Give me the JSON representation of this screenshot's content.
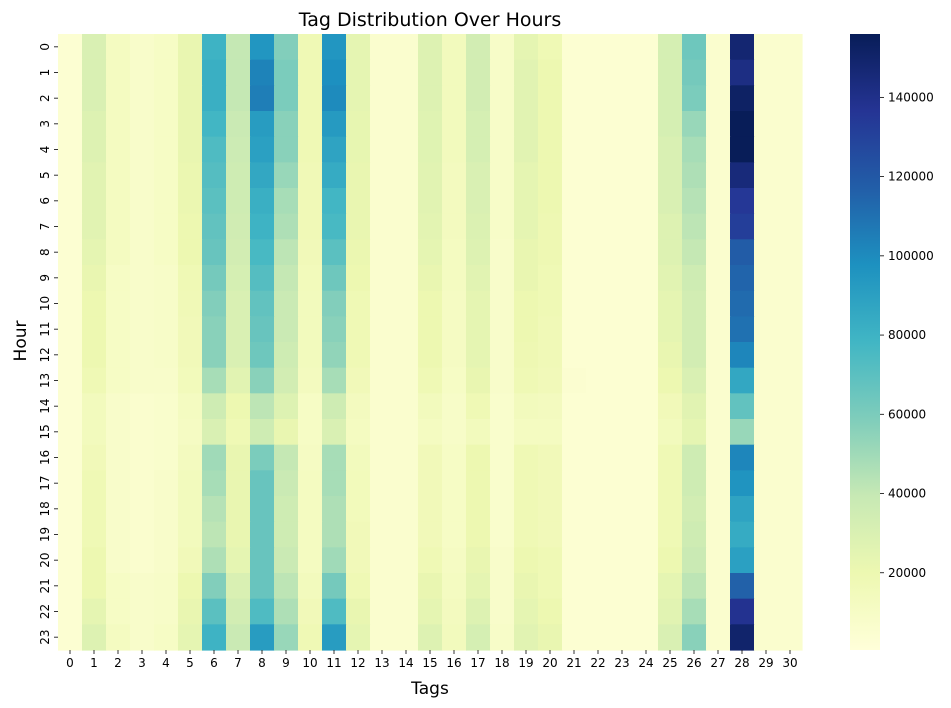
{
  "chart_data": {
    "type": "heatmap",
    "title": "Tag Distribution Over Hours",
    "xlabel": "Tags",
    "ylabel": "Hour",
    "x_categories": [
      "0",
      "1",
      "2",
      "3",
      "4",
      "5",
      "6",
      "7",
      "8",
      "9",
      "10",
      "11",
      "12",
      "13",
      "14",
      "15",
      "16",
      "17",
      "18",
      "19",
      "20",
      "21",
      "22",
      "23",
      "24",
      "25",
      "26",
      "27",
      "28",
      "29",
      "30"
    ],
    "y_categories": [
      "0",
      "1",
      "2",
      "3",
      "4",
      "5",
      "6",
      "7",
      "8",
      "9",
      "10",
      "11",
      "12",
      "13",
      "14",
      "15",
      "16",
      "17",
      "18",
      "19",
      "20",
      "21",
      "22",
      "23"
    ],
    "colormap": "YlGnBu",
    "color_stops": [
      "#ffffd9",
      "#edf8b1",
      "#c7e9b4",
      "#7fcdbb",
      "#41b6c4",
      "#1d91c0",
      "#225ea8",
      "#253494",
      "#081d58"
    ],
    "vmin": 500,
    "vmax": 156000,
    "colorbar_ticks": [
      20000,
      40000,
      60000,
      80000,
      100000,
      120000,
      140000
    ],
    "colorbar_tick_labels": [
      "20000",
      "40000",
      "60000",
      "80000",
      "100000",
      "120000",
      "140000"
    ],
    "grid": false,
    "values": [
      [
        4000,
        30000,
        12000,
        8000,
        10000,
        22000,
        80000,
        40000,
        95000,
        58000,
        18000,
        95000,
        24000,
        6000,
        6000,
        28000,
        14000,
        34000,
        9000,
        24000,
        18000,
        4000,
        4000,
        4000,
        4000,
        32000,
        64000,
        6000,
        148000,
        6000,
        6000
      ],
      [
        4000,
        30000,
        12000,
        8000,
        10000,
        22000,
        82000,
        40000,
        103000,
        60000,
        18000,
        98000,
        24000,
        6000,
        6000,
        28000,
        14000,
        34000,
        9000,
        26000,
        20000,
        4000,
        4000,
        4000,
        4000,
        32000,
        62000,
        6000,
        142000,
        6000,
        6000
      ],
      [
        4000,
        30000,
        12000,
        8000,
        10000,
        22000,
        82000,
        40000,
        105000,
        60000,
        18000,
        100000,
        24000,
        6000,
        6000,
        28000,
        14000,
        34000,
        9000,
        26000,
        20000,
        4000,
        4000,
        4000,
        4000,
        32000,
        60000,
        6000,
        152000,
        6000,
        6000
      ],
      [
        4000,
        28000,
        12000,
        8000,
        10000,
        22000,
        78000,
        38000,
        92000,
        56000,
        18000,
        93000,
        23000,
        6000,
        6000,
        27000,
        14000,
        32000,
        9000,
        26000,
        20000,
        4000,
        4000,
        4000,
        4000,
        32000,
        52000,
        6000,
        156000,
        6000,
        6000
      ],
      [
        4000,
        28000,
        12000,
        8000,
        10000,
        22000,
        74000,
        37000,
        90000,
        56000,
        18000,
        88000,
        23000,
        6000,
        6000,
        27000,
        14000,
        32000,
        9000,
        26000,
        20000,
        4000,
        4000,
        4000,
        4000,
        30000,
        48000,
        6000,
        156000,
        6000,
        6000
      ],
      [
        4000,
        26000,
        12000,
        8000,
        10000,
        21000,
        72000,
        36000,
        86000,
        52000,
        17000,
        84000,
        22000,
        6000,
        6000,
        26000,
        13000,
        30000,
        9000,
        24000,
        20000,
        4000,
        4000,
        4000,
        4000,
        30000,
        46000,
        6000,
        145000,
        6000,
        6000
      ],
      [
        4000,
        26000,
        12000,
        8000,
        10000,
        21000,
        70000,
        36000,
        82000,
        48000,
        17000,
        78000,
        22000,
        6000,
        6000,
        26000,
        13000,
        30000,
        9000,
        24000,
        20000,
        4000,
        4000,
        4000,
        4000,
        30000,
        44000,
        6000,
        135000,
        6000,
        6000
      ],
      [
        4000,
        26000,
        12000,
        8000,
        10000,
        20000,
        68000,
        35000,
        80000,
        46000,
        17000,
        76000,
        22000,
        6000,
        6000,
        25000,
        13000,
        29000,
        9000,
        24000,
        19000,
        4000,
        4000,
        4000,
        4000,
        28000,
        42000,
        6000,
        132000,
        6000,
        6000
      ],
      [
        4000,
        24000,
        12000,
        8000,
        10000,
        20000,
        66000,
        34000,
        76000,
        42000,
        16000,
        70000,
        21000,
        6000,
        6000,
        24000,
        12000,
        28000,
        8000,
        22000,
        19000,
        4000,
        4000,
        4000,
        4000,
        28000,
        40000,
        6000,
        118000,
        6000,
        6000
      ],
      [
        4000,
        22000,
        10000,
        8000,
        9000,
        18000,
        62000,
        32000,
        72000,
        40000,
        15000,
        64000,
        20000,
        6000,
        6000,
        22000,
        12000,
        26000,
        8000,
        22000,
        18000,
        4000,
        4000,
        4000,
        4000,
        26000,
        36000,
        6000,
        115000,
        6000,
        6000
      ],
      [
        4000,
        20000,
        10000,
        8000,
        9000,
        17000,
        58000,
        30000,
        68000,
        38000,
        14000,
        58000,
        18000,
        6000,
        6000,
        20000,
        11000,
        24000,
        8000,
        20000,
        18000,
        4000,
        4000,
        4000,
        4000,
        24000,
        34000,
        6000,
        112000,
        6000,
        6000
      ],
      [
        4000,
        20000,
        10000,
        8000,
        9000,
        16000,
        56000,
        30000,
        66000,
        38000,
        14000,
        56000,
        18000,
        6000,
        6000,
        20000,
        11000,
        24000,
        8000,
        20000,
        17000,
        4000,
        4000,
        4000,
        4000,
        24000,
        34000,
        6000,
        110000,
        6000,
        6000
      ],
      [
        4000,
        20000,
        10000,
        8000,
        9000,
        16000,
        56000,
        30000,
        64000,
        36000,
        14000,
        54000,
        18000,
        6000,
        6000,
        20000,
        11000,
        24000,
        8000,
        19000,
        17000,
        4000,
        4000,
        4000,
        4000,
        22000,
        34000,
        6000,
        102000,
        6000,
        6000
      ],
      [
        4000,
        18000,
        10000,
        8000,
        8000,
        15000,
        48000,
        26000,
        56000,
        34000,
        13000,
        48000,
        16000,
        6000,
        6000,
        18000,
        10000,
        22000,
        8000,
        18000,
        16000,
        5000,
        4000,
        4000,
        4000,
        20000,
        30000,
        6000,
        86000,
        6000,
        6000
      ],
      [
        4000,
        14000,
        8000,
        6000,
        7000,
        12000,
        36000,
        20000,
        42000,
        28000,
        10000,
        36000,
        13000,
        6000,
        6000,
        14000,
        9000,
        18000,
        7000,
        14000,
        13000,
        4000,
        4000,
        4000,
        4000,
        16000,
        26000,
        6000,
        68000,
        6000,
        6000
      ],
      [
        4000,
        14000,
        8000,
        6000,
        7000,
        11000,
        30000,
        18000,
        36000,
        22000,
        10000,
        30000,
        12000,
        6000,
        6000,
        12000,
        9000,
        14000,
        7000,
        12000,
        12000,
        4000,
        4000,
        4000,
        4000,
        14000,
        24000,
        6000,
        52000,
        6000,
        6000
      ],
      [
        4000,
        16000,
        8000,
        6000,
        7000,
        13000,
        50000,
        22000,
        60000,
        40000,
        11000,
        48000,
        14000,
        6000,
        6000,
        16000,
        10000,
        20000,
        7000,
        18000,
        16000,
        4000,
        4000,
        4000,
        4000,
        18000,
        36000,
        6000,
        102000,
        6000,
        6000
      ],
      [
        4000,
        18000,
        8000,
        6000,
        8000,
        14000,
        48000,
        22000,
        66000,
        38000,
        12000,
        48000,
        15000,
        6000,
        6000,
        16000,
        10000,
        20000,
        7000,
        18000,
        16000,
        4000,
        4000,
        4000,
        4000,
        18000,
        36000,
        6000,
        96000,
        6000,
        6000
      ],
      [
        4000,
        18000,
        8000,
        6000,
        8000,
        14000,
        44000,
        22000,
        66000,
        36000,
        12000,
        46000,
        15000,
        6000,
        6000,
        16000,
        10000,
        20000,
        7000,
        18000,
        16000,
        4000,
        4000,
        4000,
        4000,
        18000,
        34000,
        6000,
        88000,
        6000,
        6000
      ],
      [
        4000,
        18000,
        8000,
        6000,
        8000,
        14000,
        42000,
        22000,
        66000,
        36000,
        12000,
        46000,
        16000,
        6000,
        6000,
        16000,
        10000,
        20000,
        7000,
        18000,
        16000,
        4000,
        4000,
        4000,
        4000,
        18000,
        36000,
        6000,
        84000,
        6000,
        6000
      ],
      [
        4000,
        20000,
        8000,
        6000,
        8000,
        16000,
        46000,
        24000,
        66000,
        38000,
        12000,
        50000,
        16000,
        6000,
        6000,
        18000,
        11000,
        22000,
        8000,
        20000,
        18000,
        4000,
        4000,
        4000,
        4000,
        20000,
        38000,
        6000,
        90000,
        6000,
        6000
      ],
      [
        4000,
        20000,
        10000,
        8000,
        9000,
        20000,
        58000,
        30000,
        66000,
        42000,
        14000,
        62000,
        18000,
        6000,
        6000,
        22000,
        12000,
        24000,
        8000,
        22000,
        18000,
        4000,
        4000,
        4000,
        4000,
        24000,
        42000,
        6000,
        116000,
        6000,
        6000
      ],
      [
        4000,
        24000,
        10000,
        8000,
        9000,
        22000,
        70000,
        34000,
        74000,
        46000,
        16000,
        74000,
        22000,
        6000,
        6000,
        24000,
        13000,
        28000,
        8000,
        24000,
        20000,
        4000,
        4000,
        4000,
        4000,
        26000,
        48000,
        6000,
        138000,
        6000,
        6000
      ],
      [
        4000,
        28000,
        12000,
        8000,
        10000,
        24000,
        80000,
        38000,
        92000,
        52000,
        18000,
        92000,
        24000,
        6000,
        6000,
        28000,
        14000,
        32000,
        9000,
        26000,
        22000,
        4000,
        4000,
        4000,
        4000,
        30000,
        56000,
        6000,
        150000,
        6000,
        6000
      ]
    ]
  }
}
